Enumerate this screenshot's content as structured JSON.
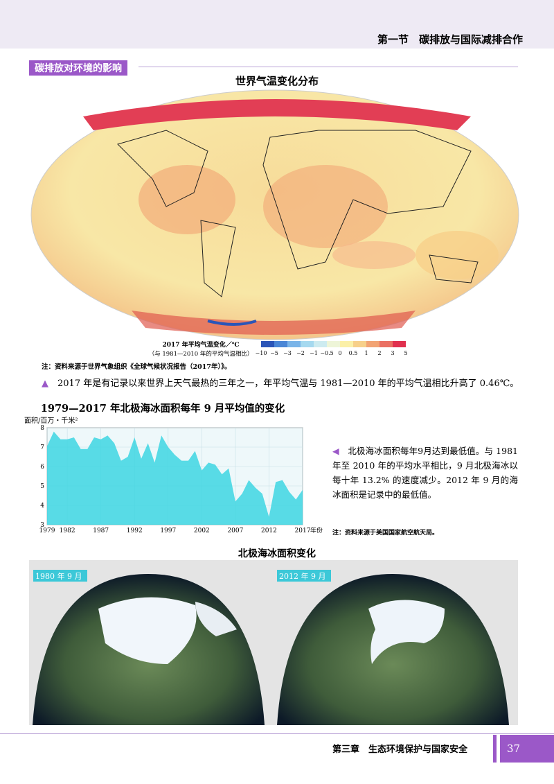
{
  "header": {
    "section": "第一节　碳排放与国际减排合作"
  },
  "section_tag": "碳排放对环境的影响",
  "map": {
    "title": "世界气温变化分布",
    "legend": {
      "title": "2017 年平均气温变化／℃",
      "subtitle": "（与 1981—2010 年的平均气温相比）",
      "labels": [
        "−10",
        "−5",
        "−3",
        "−2",
        "−1",
        "−0.5",
        "0",
        "0.5",
        "1",
        "2",
        "3",
        "5"
      ],
      "colors": [
        "#2b55b8",
        "#4a86d6",
        "#7ab4e8",
        "#a6d9ef",
        "#cdebf0",
        "#eef5d8",
        "#fbf0a8",
        "#f7d08a",
        "#f2a373",
        "#ea6f62",
        "#e0304e"
      ]
    },
    "note": "注：资料来源于世界气象组织《全球气候状况报告（2017年）》。"
  },
  "caption": "2017 年是有记录以来世界上天气最热的三年之一，年平均气温与 1981—2010 年的平均气温相比升高了 0.46℃。",
  "ice_chart": {
    "type": "area",
    "title": "1979—2017 年北极海冰面积每年 9 月平均值的变化",
    "y_label": "面积/百万・千米²",
    "x_label": "年份",
    "x": [
      1979,
      1980,
      1981,
      1982,
      1983,
      1984,
      1985,
      1986,
      1987,
      1988,
      1989,
      1990,
      1991,
      1992,
      1993,
      1994,
      1995,
      1996,
      1997,
      1998,
      1999,
      2000,
      2001,
      2002,
      2003,
      2004,
      2005,
      2006,
      2007,
      2008,
      2009,
      2010,
      2011,
      2012,
      2013,
      2014,
      2015,
      2016,
      2017
    ],
    "values": [
      7.05,
      7.8,
      7.4,
      7.4,
      7.5,
      6.9,
      6.9,
      7.5,
      7.4,
      7.6,
      7.2,
      6.3,
      6.5,
      7.5,
      6.4,
      7.2,
      6.2,
      7.6,
      7.0,
      6.6,
      6.3,
      6.3,
      6.8,
      5.8,
      6.2,
      6.1,
      5.6,
      5.9,
      4.2,
      4.6,
      5.3,
      4.9,
      4.6,
      3.4,
      5.2,
      5.3,
      4.7,
      4.3,
      4.8
    ],
    "color": "#3dd6e2",
    "xlim": [
      1979,
      2017
    ],
    "xticks": [
      1979,
      1982,
      1987,
      1992,
      1997,
      2002,
      2007,
      2012,
      2017
    ],
    "ylim": [
      3,
      8
    ],
    "yticks": [
      3,
      4,
      5,
      6,
      7,
      8
    ],
    "grid": true
  },
  "side_text": "北极海冰面积每年9月达到最低值。与 1981 年至 2010 年的平均水平相比，9 月北极海冰以每十年 13.2% 的速度减少。2012 年 9 月的海冰面积是记录中的最低值。",
  "side_note": "注：资料来源于美国国家航空航天局。",
  "globes": {
    "title": "北极海冰面积变化",
    "labels": [
      "1980 年 9 月",
      "2012 年 9 月"
    ]
  },
  "footer": {
    "chapter": "第三章　生态环境保护与国家安全",
    "page": 37
  }
}
